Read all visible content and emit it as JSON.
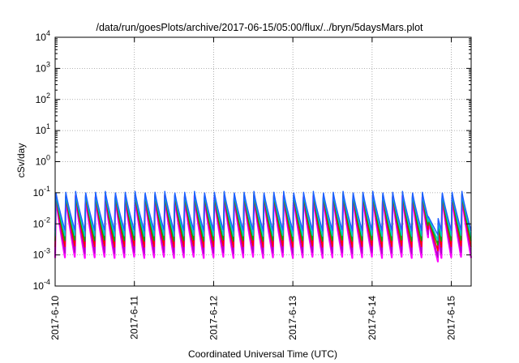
{
  "chart_data": {
    "type": "line",
    "title": "/data/run/goesPlots/archive/2017-06-15/05:00/flux/../bryn/5daysMars.plot",
    "xlabel": "Coordinated Universal Time (UTC)",
    "ylabel": "cSv/day",
    "x_range": [
      "2017-06-10T00:00",
      "2017-06-15T06:00"
    ],
    "x_ticks": [
      "2017-6-10",
      "2017-6-11",
      "2017-6-12",
      "2017-6-13",
      "2017-6-14",
      "2017-6-15"
    ],
    "y_scale": "log",
    "ylim": [
      0.0001,
      10000
    ],
    "y_ticks": [
      {
        "base": "10",
        "exp": "-4"
      },
      {
        "base": "10",
        "exp": "-3"
      },
      {
        "base": "10",
        "exp": "-2"
      },
      {
        "base": "10",
        "exp": "-1"
      },
      {
        "base": "10",
        "exp": "0"
      },
      {
        "base": "10",
        "exp": "1"
      },
      {
        "base": "10",
        "exp": "2"
      },
      {
        "base": "10",
        "exp": "3"
      },
      {
        "base": "10",
        "exp": "4"
      }
    ],
    "grid": true,
    "cycles_per_day": 8,
    "dropout": {
      "start": "2017-06-14T17:00",
      "end": "2017-06-14T20:00"
    },
    "series": [
      {
        "color": "#ff00ff",
        "peak": 0.08,
        "trough": 0.0008
      },
      {
        "color": "#b000c8",
        "peak": 0.085,
        "trough": 0.0011
      },
      {
        "color": "#ff0000",
        "peak": 0.09,
        "trough": 0.0018
      },
      {
        "color": "#00aa00",
        "peak": 0.095,
        "trough": 0.0028
      },
      {
        "color": "#00c8c8",
        "peak": 0.1,
        "trough": 0.004
      },
      {
        "color": "#1e5fff",
        "peak": 0.11,
        "trough": 0.006
      }
    ]
  }
}
